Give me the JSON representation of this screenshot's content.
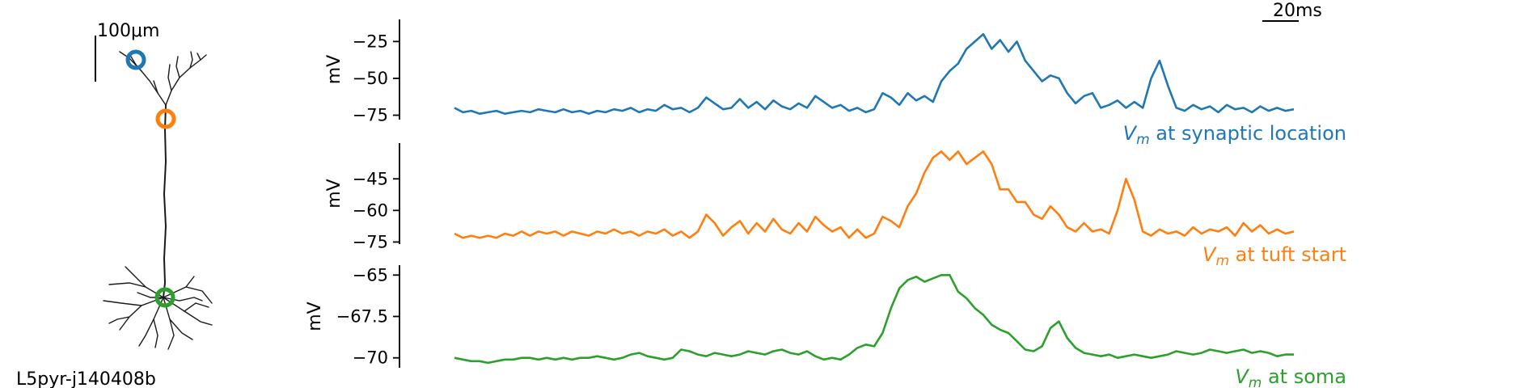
{
  "neuron": {
    "cell_name": "L5pyr-j140408b",
    "scalebar_label": "100μm",
    "marker_colors": {
      "synaptic": "#1f77b4",
      "tuft": "#ff7f0e",
      "soma": "#2ca02c"
    }
  },
  "time_scalebar": {
    "label": "20ms"
  },
  "chart_data": [
    {
      "type": "line",
      "ylabel": "mV",
      "yticks": [
        -25,
        -50,
        -75
      ],
      "ylim": [
        -78,
        -10
      ],
      "color": "#1f77b4",
      "trace_label_var": "V",
      "trace_label_sub": "m",
      "trace_label_rest": " at synaptic location",
      "xlim": [
        0,
        200
      ],
      "series": [
        {
          "x": [
            0,
            2,
            4,
            6,
            8,
            10,
            12,
            14,
            16,
            18,
            20,
            22,
            24,
            26,
            28,
            30,
            32,
            34,
            36,
            38,
            40,
            42,
            44,
            46,
            48,
            50,
            52,
            54,
            56,
            58,
            60,
            62,
            64,
            66,
            68,
            70,
            72,
            74,
            76,
            78,
            80,
            82,
            84,
            86,
            88,
            90,
            92,
            94,
            96,
            98,
            100,
            102,
            104,
            106,
            108,
            110,
            112,
            114,
            116,
            118,
            120,
            122,
            124,
            126,
            128,
            130,
            132,
            134,
            136,
            138,
            140,
            142,
            144,
            146,
            148,
            150,
            152,
            154,
            156,
            158,
            160,
            162,
            164,
            166,
            168,
            170,
            172,
            174,
            176,
            178,
            180,
            182,
            184,
            186,
            188,
            190,
            192,
            194,
            196,
            198,
            200
          ],
          "y": [
            -70,
            -73,
            -72,
            -74,
            -73,
            -72,
            -74,
            -73,
            -72,
            -73,
            -71,
            -72,
            -73,
            -71,
            -73,
            -72,
            -74,
            -72,
            -73,
            -71,
            -72,
            -70,
            -73,
            -71,
            -72,
            -68,
            -71,
            -70,
            -73,
            -70,
            -63,
            -67,
            -71,
            -70,
            -64,
            -70,
            -66,
            -71,
            -65,
            -69,
            -71,
            -67,
            -70,
            -62,
            -66,
            -70,
            -68,
            -72,
            -70,
            -73,
            -71,
            -60,
            -63,
            -68,
            -60,
            -65,
            -62,
            -66,
            -52,
            -45,
            -40,
            -30,
            -25,
            -20,
            -30,
            -24,
            -32,
            -25,
            -38,
            -45,
            -52,
            -48,
            -50,
            -60,
            -67,
            -62,
            -60,
            -70,
            -68,
            -65,
            -70,
            -66,
            -70,
            -50,
            -38,
            -55,
            -70,
            -72,
            -68,
            -71,
            -69,
            -73,
            -68,
            -71,
            -70,
            -73,
            -69,
            -72,
            -70,
            -72,
            -71
          ]
        }
      ]
    },
    {
      "type": "line",
      "ylabel": "mV",
      "yticks": [
        -45,
        -60,
        -75
      ],
      "ylim": [
        -76,
        -28
      ],
      "color": "#ff7f0e",
      "trace_label_var": "V",
      "trace_label_sub": "m",
      "trace_label_rest": " at tuft start",
      "xlim": [
        0,
        200
      ],
      "series": [
        {
          "x": [
            0,
            2,
            4,
            6,
            8,
            10,
            12,
            14,
            16,
            18,
            20,
            22,
            24,
            26,
            28,
            30,
            32,
            34,
            36,
            38,
            40,
            42,
            44,
            46,
            48,
            50,
            52,
            54,
            56,
            58,
            60,
            62,
            64,
            66,
            68,
            70,
            72,
            74,
            76,
            78,
            80,
            82,
            84,
            86,
            88,
            90,
            92,
            94,
            96,
            98,
            100,
            102,
            104,
            106,
            108,
            110,
            112,
            114,
            116,
            118,
            120,
            122,
            124,
            126,
            128,
            130,
            132,
            134,
            136,
            138,
            140,
            142,
            144,
            146,
            148,
            150,
            152,
            154,
            156,
            158,
            160,
            162,
            164,
            166,
            168,
            170,
            172,
            174,
            176,
            178,
            180,
            182,
            184,
            186,
            188,
            190,
            192,
            194,
            196,
            198,
            200
          ],
          "y": [
            -71,
            -73,
            -72,
            -73,
            -72,
            -73,
            -71,
            -72,
            -70,
            -72,
            -70,
            -71,
            -70,
            -72,
            -70,
            -71,
            -72,
            -70,
            -71,
            -69,
            -71,
            -70,
            -72,
            -70,
            -71,
            -69,
            -72,
            -70,
            -73,
            -70,
            -62,
            -66,
            -72,
            -68,
            -65,
            -71,
            -66,
            -70,
            -64,
            -69,
            -71,
            -66,
            -70,
            -63,
            -67,
            -70,
            -68,
            -73,
            -69,
            -73,
            -71,
            -63,
            -65,
            -68,
            -58,
            -52,
            -42,
            -35,
            -32,
            -36,
            -32,
            -38,
            -35,
            -32,
            -38,
            -50,
            -50,
            -56,
            -56,
            -62,
            -64,
            -58,
            -62,
            -68,
            -70,
            -66,
            -70,
            -69,
            -71,
            -60,
            -45,
            -55,
            -70,
            -72,
            -69,
            -71,
            -70,
            -72,
            -68,
            -71,
            -69,
            -70,
            -68,
            -72,
            -66,
            -70,
            -67,
            -71,
            -69,
            -71,
            -70
          ]
        }
      ]
    },
    {
      "type": "line",
      "ylabel": "mV",
      "yticks": [
        -65.0,
        -67.5,
        -70.0
      ],
      "ylim": [
        -70.6,
        -64.4
      ],
      "color": "#2ca02c",
      "trace_label_var": "V",
      "trace_label_sub": "m",
      "trace_label_rest": " at soma",
      "xlim": [
        0,
        200
      ],
      "series": [
        {
          "x": [
            0,
            2,
            4,
            6,
            8,
            10,
            12,
            14,
            16,
            18,
            20,
            22,
            24,
            26,
            28,
            30,
            32,
            34,
            36,
            38,
            40,
            42,
            44,
            46,
            48,
            50,
            52,
            54,
            56,
            58,
            60,
            62,
            64,
            66,
            68,
            70,
            72,
            74,
            76,
            78,
            80,
            82,
            84,
            86,
            88,
            90,
            92,
            94,
            96,
            98,
            100,
            102,
            104,
            106,
            108,
            110,
            112,
            114,
            116,
            118,
            120,
            122,
            124,
            126,
            128,
            130,
            132,
            134,
            136,
            138,
            140,
            142,
            144,
            146,
            148,
            150,
            152,
            154,
            156,
            158,
            160,
            162,
            164,
            166,
            168,
            170,
            172,
            174,
            176,
            178,
            180,
            182,
            184,
            186,
            188,
            190,
            192,
            194,
            196,
            198,
            200
          ],
          "y": [
            -70.0,
            -70.1,
            -70.2,
            -70.2,
            -70.3,
            -70.2,
            -70.1,
            -70.1,
            -70.0,
            -70.0,
            -70.1,
            -70.0,
            -70.1,
            -70.0,
            -70.1,
            -70.0,
            -70.0,
            -69.9,
            -70.0,
            -70.1,
            -70.0,
            -69.8,
            -69.7,
            -69.9,
            -70.0,
            -70.1,
            -70.0,
            -69.5,
            -69.6,
            -69.8,
            -69.9,
            -69.7,
            -69.8,
            -69.9,
            -69.8,
            -69.6,
            -69.7,
            -69.8,
            -69.6,
            -69.5,
            -69.7,
            -69.8,
            -69.6,
            -69.9,
            -70.1,
            -70.0,
            -70.1,
            -69.8,
            -69.4,
            -69.2,
            -69.3,
            -68.5,
            -67.0,
            -65.8,
            -65.3,
            -65.1,
            -65.4,
            -65.2,
            -65.0,
            -65.0,
            -66.0,
            -66.4,
            -67.0,
            -67.4,
            -68.0,
            -68.3,
            -68.5,
            -69.0,
            -69.5,
            -69.6,
            -69.3,
            -68.2,
            -67.8,
            -68.8,
            -69.4,
            -69.7,
            -69.8,
            -69.9,
            -69.8,
            -70.0,
            -69.9,
            -69.8,
            -69.9,
            -70.0,
            -69.9,
            -69.8,
            -69.6,
            -69.7,
            -69.8,
            -69.7,
            -69.5,
            -69.6,
            -69.7,
            -69.6,
            -69.5,
            -69.7,
            -69.6,
            -69.7,
            -69.9,
            -69.8,
            -69.8
          ]
        }
      ]
    }
  ]
}
